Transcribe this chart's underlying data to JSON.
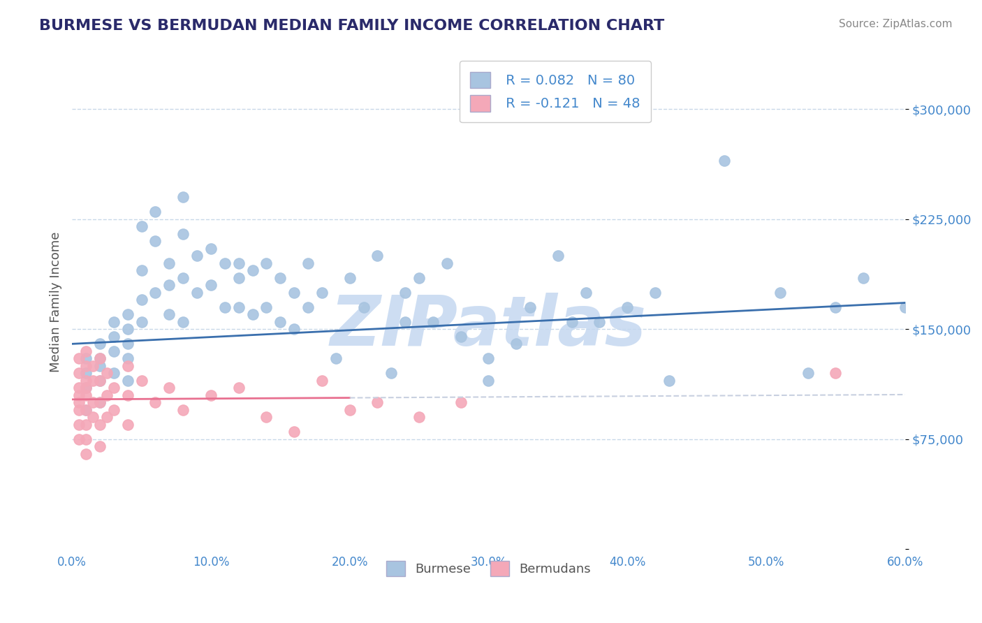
{
  "title": "BURMESE VS BERMUDAN MEDIAN FAMILY INCOME CORRELATION CHART",
  "source": "Source: ZipAtlas.com",
  "xlabel": "",
  "ylabel": "Median Family Income",
  "xlim": [
    0.0,
    0.6
  ],
  "ylim": [
    0,
    337500
  ],
  "yticks": [
    0,
    75000,
    150000,
    225000,
    300000
  ],
  "ytick_labels": [
    "",
    "$75,000",
    "$150,000",
    "$225,000",
    "$300,000"
  ],
  "xtick_labels": [
    "0.0%",
    "10.0%",
    "20.0%",
    "30.0%",
    "40.0%",
    "50.0%",
    "60.0%"
  ],
  "xticks": [
    0.0,
    0.1,
    0.2,
    0.3,
    0.4,
    0.5,
    0.6
  ],
  "legend_burmese": "Burmese",
  "legend_bermudans": "Bermudans",
  "R_burmese": 0.082,
  "N_burmese": 80,
  "R_bermudans": -0.121,
  "N_bermudans": 48,
  "burmese_color": "#a8c4e0",
  "bermudan_color": "#f4a8b8",
  "trend_burmese_color": "#3a6fad",
  "trend_bermudan_solid_color": "#e87090",
  "trend_bermudan_dash_color": "#c8d0e0",
  "burmese_scatter": {
    "x": [
      0.01,
      0.01,
      0.01,
      0.01,
      0.02,
      0.02,
      0.02,
      0.02,
      0.02,
      0.03,
      0.03,
      0.03,
      0.03,
      0.04,
      0.04,
      0.04,
      0.04,
      0.04,
      0.05,
      0.05,
      0.05,
      0.05,
      0.06,
      0.06,
      0.06,
      0.07,
      0.07,
      0.07,
      0.08,
      0.08,
      0.08,
      0.08,
      0.09,
      0.09,
      0.1,
      0.1,
      0.11,
      0.11,
      0.12,
      0.12,
      0.12,
      0.13,
      0.13,
      0.14,
      0.14,
      0.15,
      0.15,
      0.16,
      0.16,
      0.17,
      0.17,
      0.18,
      0.19,
      0.2,
      0.21,
      0.22,
      0.23,
      0.24,
      0.24,
      0.25,
      0.26,
      0.27,
      0.28,
      0.3,
      0.3,
      0.32,
      0.33,
      0.35,
      0.36,
      0.37,
      0.38,
      0.4,
      0.42,
      0.43,
      0.47,
      0.51,
      0.53,
      0.55,
      0.57,
      0.6
    ],
    "y": [
      130000,
      120000,
      110000,
      95000,
      140000,
      130000,
      125000,
      115000,
      100000,
      155000,
      145000,
      135000,
      120000,
      160000,
      150000,
      140000,
      130000,
      115000,
      220000,
      190000,
      170000,
      155000,
      230000,
      210000,
      175000,
      195000,
      180000,
      160000,
      240000,
      215000,
      185000,
      155000,
      200000,
      175000,
      205000,
      180000,
      195000,
      165000,
      195000,
      185000,
      165000,
      190000,
      160000,
      195000,
      165000,
      185000,
      155000,
      175000,
      150000,
      195000,
      165000,
      175000,
      130000,
      185000,
      165000,
      200000,
      120000,
      175000,
      155000,
      185000,
      155000,
      195000,
      145000,
      130000,
      115000,
      140000,
      165000,
      200000,
      155000,
      175000,
      155000,
      165000,
      175000,
      115000,
      265000,
      175000,
      120000,
      165000,
      185000,
      165000
    ]
  },
  "bermudan_scatter": {
    "x": [
      0.005,
      0.005,
      0.005,
      0.005,
      0.005,
      0.005,
      0.005,
      0.005,
      0.01,
      0.01,
      0.01,
      0.01,
      0.01,
      0.01,
      0.01,
      0.01,
      0.01,
      0.015,
      0.015,
      0.015,
      0.015,
      0.02,
      0.02,
      0.02,
      0.02,
      0.02,
      0.025,
      0.025,
      0.025,
      0.03,
      0.03,
      0.04,
      0.04,
      0.04,
      0.05,
      0.06,
      0.07,
      0.08,
      0.1,
      0.12,
      0.14,
      0.16,
      0.18,
      0.2,
      0.22,
      0.25,
      0.28,
      0.55
    ],
    "y": [
      130000,
      120000,
      110000,
      105000,
      100000,
      95000,
      85000,
      75000,
      135000,
      125000,
      115000,
      110000,
      105000,
      95000,
      85000,
      75000,
      65000,
      125000,
      115000,
      100000,
      90000,
      130000,
      115000,
      100000,
      85000,
      70000,
      120000,
      105000,
      90000,
      110000,
      95000,
      125000,
      105000,
      85000,
      115000,
      100000,
      110000,
      95000,
      105000,
      110000,
      90000,
      80000,
      115000,
      95000,
      100000,
      90000,
      100000,
      120000
    ]
  },
  "watermark": "ZIPatlas",
  "watermark_color": "#c5d8f0",
  "background_color": "#ffffff",
  "grid_color": "#c8d8e8",
  "title_color": "#2a2a6a",
  "axis_label_color": "#555555",
  "tick_color": "#4488cc"
}
